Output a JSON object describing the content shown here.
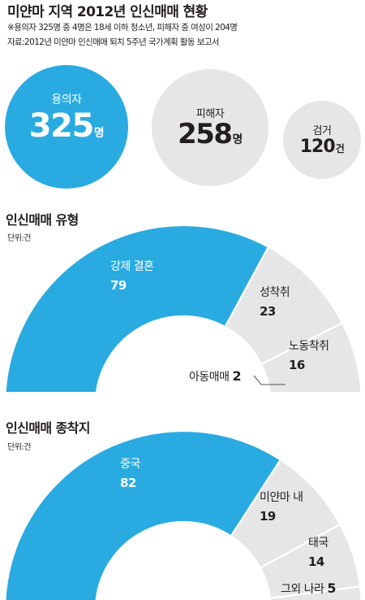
{
  "title": "미얀마 지역 2012년 인신매매 현황",
  "notes": [
    "※용의자 325명 중 4명은 18세 이하 청소년, 피해자 중 여성이 204명",
    "자료:2012년 미얀마 인신매매 퇴치 5주년 국가계획 활동 보고서"
  ],
  "colors": {
    "accent": "#29abe2",
    "gray": "#e6e6e7",
    "text": "#231f20"
  },
  "stats": [
    {
      "label": "용의자",
      "value": "325",
      "unit": "명"
    },
    {
      "label": "피해자",
      "value": "258",
      "unit": "명"
    },
    {
      "label": "검거",
      "value": "120",
      "unit": "건"
    }
  ],
  "chart_data": [
    {
      "type": "pie",
      "title": "인신매매 유형",
      "unit_note": "단위:건",
      "categories": [
        "강제 결혼",
        "성착취",
        "노동착취",
        "아동매매"
      ],
      "values": [
        79,
        23,
        16,
        2
      ]
    },
    {
      "type": "pie",
      "title": "인신매매 종착지",
      "unit_note": "단위:건",
      "categories": [
        "중국",
        "미얀마 내",
        "태국",
        "그외 나라"
      ],
      "values": [
        82,
        19,
        14,
        5
      ]
    }
  ]
}
